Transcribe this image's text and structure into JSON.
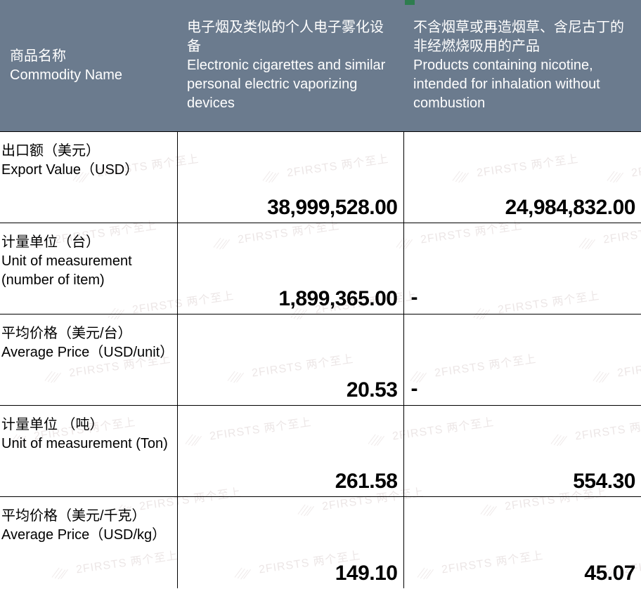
{
  "header": {
    "col1_cn": "商品名称",
    "col1_en": "Commodity Name",
    "col2_cn": "电子烟及类似的个人电子雾化设备",
    "col2_en": "Electronic cigarettes and similar personal electric vaporizing devices",
    "col3_cn": "不含烟草或再造烟草、含尼古丁的非经燃烧吸用的产品",
    "col3_en": "Products containing nicotine, intended for inhalation without combustion"
  },
  "rows": [
    {
      "label_cn": "出口额（美元）",
      "label_en": " Export Value（USD）",
      "c2": "38,999,528.00",
      "c3": "24,984,832.00",
      "c3_dash": false
    },
    {
      "label_cn": "计量单位（台）",
      "label_en": "Unit of measurement (number of item)",
      "c2": "1,899,365.00",
      "c3": "-",
      "c3_dash": true
    },
    {
      "label_cn": "平均价格（美元/台）",
      "label_en": "Average Price（USD/unit）",
      "c2": "20.53",
      "c3": "-",
      "c3_dash": true
    },
    {
      "label_cn": "计量单位 （吨）",
      "label_en": "Unit of measurement (Ton)",
      "c2": "261.58",
      "c3": "554.30",
      "c3_dash": false
    },
    {
      "label_cn": "平均价格（美元/千克）",
      "label_en": "Average Price（USD/kg）",
      "c2": "149.10",
      "c3": "45.07",
      "c3_dash": false
    }
  ],
  "watermark_text": "2FIRSTS 两个至上",
  "style": {
    "header_bg": "#6b7b8e",
    "header_color": "#ffffff",
    "border_color": "#000000",
    "value_font_size": 30,
    "value_font_weight": 700,
    "label_font_size": 20,
    "watermark_color": "#c9b8b8",
    "accent_color": "#2e7d4f"
  }
}
